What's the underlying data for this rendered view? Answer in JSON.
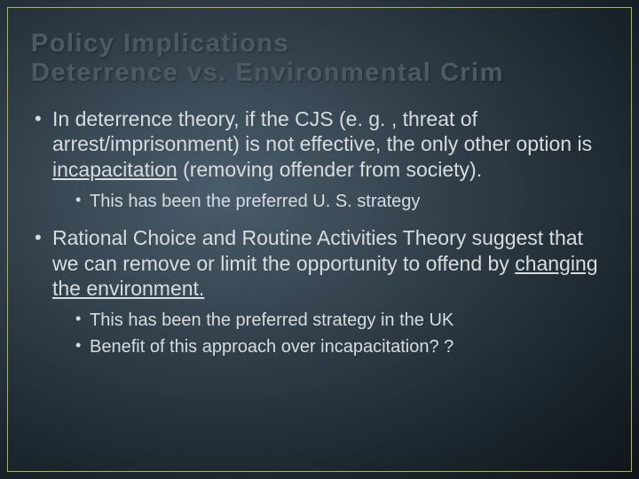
{
  "slide": {
    "background": {
      "gradient_center": "#4a5d6b",
      "gradient_mid1": "#3a4a56",
      "gradient_mid2": "#2a3640",
      "gradient_outer": "#1a242c",
      "gradient_edge": "#0f1518"
    },
    "border_color": "#aab84a",
    "title": {
      "line1": "Policy Implications",
      "line2": "Deterrence vs. Environmental Crim",
      "color": "#4a5a62",
      "fontsize": 29,
      "letter_spacing": 1.5,
      "font_weight": "bold"
    },
    "body": {
      "text_color": "#d8dcde",
      "main_fontsize": 23,
      "sub_fontsize": 20,
      "bullets": [
        {
          "text_pre": "In deterrence theory, if the CJS (e. g. , threat of arrest/imprisonment) is not effective, the only other option is ",
          "underline": "incapacitation",
          "text_post": " (removing offender from society).",
          "sub": [
            "This has been the preferred U. S. strategy"
          ]
        },
        {
          "text_pre": "Rational Choice and Routine Activities Theory suggest that we can remove or limit the opportunity to offend by ",
          "underline": "changing the environment.",
          "text_post": "",
          "sub": [
            "This has been the preferred strategy in the UK",
            "Benefit of this approach over incapacitation? ?"
          ]
        }
      ]
    }
  }
}
